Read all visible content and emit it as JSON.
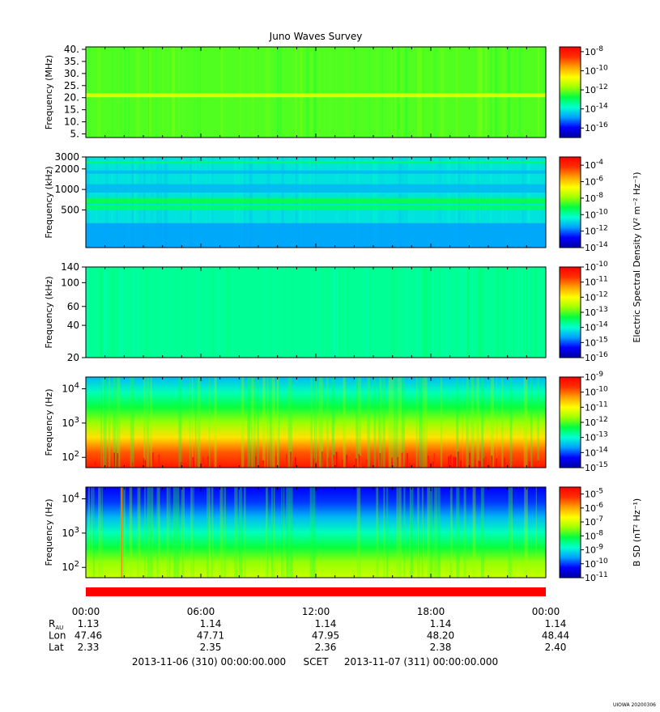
{
  "title": "Juno Waves Survey",
  "footer": {
    "start": "2013-11-06 (310) 00:00:00.000",
    "scet": "SCET",
    "end": "2013-11-07 (311) 00:00:00.000",
    "credit": "UIOWA 20200306"
  },
  "time_axis": {
    "ticks": [
      "00:00",
      "06:00",
      "12:00",
      "18:00",
      "00:00"
    ],
    "rows": [
      {
        "label": "R",
        "sub": "AU",
        "values": [
          "1.13",
          "1.14",
          "1.14",
          "1.14",
          "1.14"
        ]
      },
      {
        "label": "Lon",
        "sub": "",
        "values": [
          "47.46",
          "47.71",
          "47.95",
          "48.20",
          "48.44"
        ]
      },
      {
        "label": "Lat",
        "sub": "",
        "values": [
          "2.33",
          "2.35",
          "2.36",
          "2.38",
          "2.40"
        ]
      }
    ]
  },
  "colorbar_titles": {
    "electric": "Electric Spectral Density (V² m⁻² Hz⁻¹)",
    "magnetic": "B SD (nT² Hz⁻¹)"
  },
  "colors": {
    "status_bar": "#ff0000",
    "colormap": [
      "#0000a0",
      "#0000ff",
      "#00a0ff",
      "#00ffd0",
      "#00ff40",
      "#a0ff00",
      "#ffff00",
      "#ffa000",
      "#ff3000",
      "#ff0000"
    ]
  },
  "chart_data": [
    {
      "type": "heatmap",
      "panel": "HFR high",
      "ylabel": "Frequency (MHz)",
      "yscale": "linear",
      "ylim": [
        3.5,
        41
      ],
      "y_ticks": [
        "5.",
        "10.",
        "15.",
        "20.",
        "25.",
        "30.",
        "35.",
        "40."
      ],
      "y_tick_values": [
        5,
        10,
        15,
        20,
        25,
        30,
        35,
        40
      ],
      "colorbar_ticks": [
        "10^-8",
        "10^-10",
        "10^-12",
        "10^-14",
        "10^-16"
      ],
      "colorbar_exponents": [
        -8,
        -10,
        -12,
        -14,
        -16
      ],
      "colorbar_range": [
        -17,
        -7.5
      ],
      "dominant_level": 0.5,
      "features": [
        {
          "frequency": 21,
          "level": 0.62,
          "note": "narrow band"
        }
      ]
    },
    {
      "type": "heatmap",
      "panel": "HFR low",
      "ylabel": "Frequency (kHz)",
      "yscale": "log",
      "ylim": [
        140,
        3000
      ],
      "y_ticks": [
        "3000",
        "2000",
        "1000",
        "500"
      ],
      "y_tick_values": [
        3000,
        2000,
        1000,
        500
      ],
      "colorbar_ticks": [
        "10^-4",
        "10^-6",
        "10^-8",
        "10^-10",
        "10^-12",
        "10^-14"
      ],
      "colorbar_exponents": [
        -4,
        -6,
        -8,
        -10,
        -12,
        -14
      ],
      "colorbar_range": [
        -14,
        -3
      ],
      "dominant_level": 0.3
    },
    {
      "type": "heatmap",
      "panel": "LFR high",
      "ylabel": "Frequency (kHz)",
      "yscale": "log",
      "ylim": [
        20,
        140
      ],
      "y_ticks": [
        "140",
        "100",
        "60",
        "40",
        "20"
      ],
      "y_tick_values": [
        140,
        100,
        60,
        40,
        20
      ],
      "colorbar_ticks": [
        "10^-10",
        "10^-11",
        "10^-12",
        "10^-13",
        "10^-14",
        "10^-15",
        "10^-16"
      ],
      "colorbar_exponents": [
        -10,
        -11,
        -12,
        -13,
        -14,
        -15,
        -16
      ],
      "colorbar_range": [
        -16,
        -10
      ],
      "dominant_level": 0.38
    },
    {
      "type": "heatmap",
      "panel": "LFR low (E)",
      "ylabel": "Frequency (Hz)",
      "yscale": "log",
      "ylim": [
        50,
        22000
      ],
      "y_ticks": [
        "10^4",
        "10^3",
        "10^2"
      ],
      "y_tick_values": [
        10000,
        1000,
        100
      ],
      "colorbar_ticks": [
        "10^-9",
        "10^-10",
        "10^-11",
        "10^-12",
        "10^-13",
        "10^-14",
        "10^-15"
      ],
      "colorbar_exponents": [
        -9,
        -10,
        -11,
        -12,
        -13,
        -14,
        -15
      ],
      "colorbar_range": [
        -15,
        -9
      ],
      "levels_top_to_bottom": [
        0.25,
        0.35,
        0.45,
        0.55,
        0.7,
        0.85,
        0.95
      ]
    },
    {
      "type": "heatmap",
      "panel": "LFR low (B)",
      "ylabel": "Frequency (Hz)",
      "yscale": "log",
      "ylim": [
        50,
        22000
      ],
      "y_ticks": [
        "10^4",
        "10^3",
        "10^2"
      ],
      "y_tick_values": [
        10000,
        1000,
        100
      ],
      "colorbar_ticks": [
        "10^-5",
        "10^-6",
        "10^-7",
        "10^-8",
        "10^-9",
        "10^-10",
        "10^-11"
      ],
      "colorbar_exponents": [
        -5,
        -6,
        -7,
        -8,
        -9,
        -10,
        -11
      ],
      "colorbar_range": [
        -11,
        -4.5
      ],
      "levels_top_to_bottom": [
        0.1,
        0.15,
        0.25,
        0.35,
        0.45,
        0.55,
        0.6
      ],
      "features": [
        {
          "time_fraction": 0.078,
          "note": "vertical spike"
        }
      ]
    }
  ]
}
